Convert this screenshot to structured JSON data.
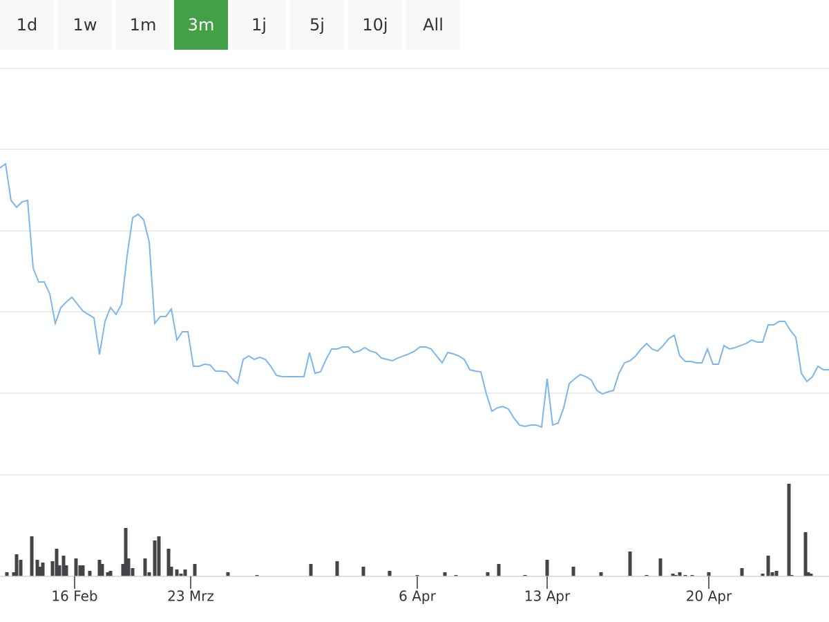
{
  "range_buttons": {
    "labels": [
      "1d",
      "1w",
      "1m",
      "3m",
      "1j",
      "5j",
      "10j",
      "All"
    ],
    "active": 3,
    "color": "#f7f8f9",
    "active_color": "#43a047"
  },
  "chart_data": [
    {
      "type": "line",
      "color": "#7cb5ec",
      "x": [
        0,
        1,
        2,
        3,
        4,
        5,
        6,
        7,
        8,
        9,
        10,
        11,
        12,
        13,
        14,
        15,
        16,
        17,
        18,
        19,
        20,
        21,
        22,
        23,
        24,
        25,
        26,
        27,
        28,
        29,
        30,
        31,
        32,
        33,
        34,
        35,
        36,
        37,
        38,
        39,
        40,
        41,
        42,
        43,
        44,
        45,
        46,
        47,
        48,
        49,
        50,
        51,
        52,
        53,
        54,
        55,
        56,
        57,
        58,
        59,
        60,
        61,
        62,
        63,
        64,
        65,
        66,
        67,
        68,
        69,
        70,
        71,
        72,
        73,
        74,
        75,
        76,
        77,
        78,
        79,
        80,
        81,
        82,
        83,
        84,
        85,
        86,
        87,
        88,
        89,
        90,
        91,
        92,
        93,
        94,
        95,
        96,
        97,
        98,
        99,
        100,
        101,
        102,
        103,
        104,
        105,
        106,
        107,
        108,
        109,
        110,
        111,
        112,
        113,
        114,
        115,
        116,
        117,
        118,
        119,
        120,
        121,
        122,
        123,
        124,
        125,
        126,
        127,
        128,
        129,
        130,
        131,
        132,
        133,
        134,
        135,
        136,
        137,
        138,
        139,
        140,
        141,
        142,
        143,
        144,
        145,
        146,
        147,
        148,
        149,
        150
      ],
      "values": [
        444,
        450,
        397,
        387,
        395,
        397,
        299,
        279,
        279,
        262,
        219,
        242,
        250,
        257,
        247,
        237,
        232,
        227,
        174,
        222,
        242,
        232,
        247,
        317,
        372,
        377,
        369,
        337,
        219,
        229,
        229,
        240,
        195,
        207,
        207,
        157,
        157,
        160,
        159,
        150,
        150,
        149,
        139,
        132,
        167,
        172,
        167,
        170,
        167,
        157,
        144,
        142,
        142,
        142,
        142,
        142,
        177,
        147,
        149,
        167,
        182,
        182,
        185,
        185,
        177,
        179,
        184,
        179,
        177,
        169,
        167,
        165,
        169,
        172,
        175,
        179,
        185,
        185,
        182,
        172,
        162,
        177,
        175,
        172,
        167,
        152,
        150,
        149,
        117,
        92,
        97,
        99,
        95,
        82,
        72,
        70,
        72,
        72,
        69,
        139,
        72,
        75,
        97,
        132,
        139,
        145,
        142,
        137,
        122,
        117,
        120,
        122,
        147,
        162,
        165,
        172,
        182,
        190,
        182,
        179,
        187,
        197,
        202,
        172,
        164,
        164,
        162,
        162,
        182,
        160,
        160,
        187,
        182,
        184,
        187,
        190,
        195,
        192,
        192,
        217,
        217,
        222,
        222,
        209,
        199,
        147,
        135,
        142,
        157,
        152,
        152
      ],
      "xlim": [
        0,
        150
      ],
      "ylim": [
        0,
        588
      ],
      "xticks": [
        {
          "value": 13.5,
          "label": "16 Feb"
        },
        {
          "value": 34.5,
          "label": "23 Mrz"
        },
        {
          "value": 75.5,
          "label": "6 Apr"
        },
        {
          "value": 99,
          "label": "13 Apr"
        },
        {
          "value": 128.25,
          "label": "20 Apr"
        }
      ],
      "ygrid": [
        0,
        118,
        236,
        353,
        471,
        588
      ],
      "grid": true
    },
    {
      "type": "bar",
      "color": "#434348",
      "x": [
        1.25,
        2.5,
        3,
        3.75,
        5.75,
        6.75,
        7.25,
        7.75,
        9.5,
        10.25,
        10.75,
        11.5,
        12,
        13.75,
        14.5,
        15,
        16.25,
        18,
        18.5,
        19.5,
        20,
        22.25,
        22.75,
        23.25,
        24,
        26.25,
        27,
        28,
        28.75,
        30.5,
        31,
        32,
        32.75,
        33.5,
        35.25,
        41.25,
        46.5,
        56.25,
        61,
        65.75,
        70.5,
        75.5,
        80.5,
        82.5,
        88.25,
        90.25,
        95,
        99,
        103.75,
        108.75,
        114,
        117,
        119.5,
        121.75,
        122.25,
        123,
        124,
        125.25,
        128.25,
        134.25,
        138,
        139,
        139.75,
        140.5,
        142.75,
        143.25,
        145.75,
        146.25,
        146.75
      ],
      "values": [
        6,
        6,
        32,
        24,
        58,
        24,
        14,
        20,
        22,
        40,
        16,
        30,
        16,
        26,
        16,
        16,
        8,
        24,
        18,
        6,
        8,
        18,
        70,
        26,
        12,
        26,
        6,
        52,
        58,
        40,
        14,
        10,
        4,
        10,
        18,
        6,
        2,
        18,
        22,
        14,
        8,
        2,
        6,
        2,
        6,
        18,
        2,
        24,
        14,
        6,
        36,
        2,
        26,
        4,
        2,
        6,
        2,
        2,
        6,
        12,
        4,
        30,
        6,
        8,
        134,
        2,
        64,
        6,
        4
      ],
      "xlim": [
        0,
        150
      ],
      "ylim": [
        0,
        147
      ]
    }
  ]
}
